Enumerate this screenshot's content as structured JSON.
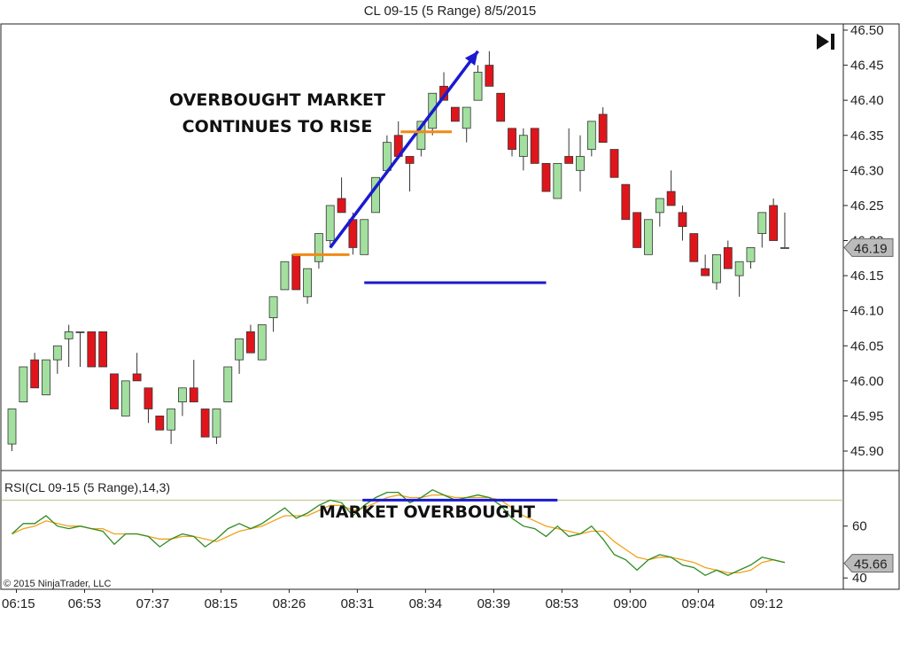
{
  "chart_data": [
    {
      "type": "candlestick",
      "title": "CL 09-15 (5 Range)  8/5/2015",
      "ylim": [
        45.87,
        46.51
      ],
      "yticks": [
        45.9,
        45.95,
        46.0,
        46.05,
        46.1,
        46.15,
        46.2,
        46.25,
        46.3,
        46.35,
        46.4,
        46.45,
        46.5
      ],
      "ytick_labels": [
        "45.90",
        "45.95",
        "46.00",
        "46.05",
        "46.10",
        "46.15",
        "46.20",
        "46.25",
        "46.30",
        "46.35",
        "46.40",
        "46.45",
        "46.50"
      ],
      "last_price_label": "46.19",
      "last_price": 46.19,
      "x_labels": [
        {
          "bar": 0,
          "label": "06:15"
        },
        {
          "bar": 6,
          "label": "06:53"
        },
        {
          "bar": 12,
          "label": "07:37"
        },
        {
          "bar": 18,
          "label": "08:15"
        },
        {
          "bar": 24,
          "label": "08:26"
        },
        {
          "bar": 30,
          "label": "08:31"
        },
        {
          "bar": 36,
          "label": "08:34"
        },
        {
          "bar": 42,
          "label": "08:39"
        },
        {
          "bar": 48,
          "label": "08:53"
        },
        {
          "bar": 54,
          "label": "09:00"
        },
        {
          "bar": 60,
          "label": "09:04"
        },
        {
          "bar": 66,
          "label": "09:12"
        }
      ],
      "candles": [
        {
          "o": 45.91,
          "h": 45.96,
          "l": 45.9,
          "c": 45.96
        },
        {
          "o": 45.97,
          "h": 46.02,
          "l": 45.97,
          "c": 46.02
        },
        {
          "o": 46.03,
          "h": 46.04,
          "l": 45.99,
          "c": 45.99
        },
        {
          "o": 45.98,
          "h": 46.03,
          "l": 45.98,
          "c": 46.03
        },
        {
          "o": 46.03,
          "h": 46.05,
          "l": 46.01,
          "c": 46.05
        },
        {
          "o": 46.06,
          "h": 46.08,
          "l": 46.02,
          "c": 46.07
        },
        {
          "o": 46.07,
          "h": 46.07,
          "l": 46.02,
          "c": 46.07
        },
        {
          "o": 46.07,
          "h": 46.07,
          "l": 46.02,
          "c": 46.02
        },
        {
          "o": 46.07,
          "h": 46.07,
          "l": 46.02,
          "c": 46.02
        },
        {
          "o": 46.01,
          "h": 46.01,
          "l": 45.96,
          "c": 45.96
        },
        {
          "o": 45.95,
          "h": 46.0,
          "l": 45.95,
          "c": 46.0
        },
        {
          "o": 46.01,
          "h": 46.04,
          "l": 46.0,
          "c": 46.0
        },
        {
          "o": 45.99,
          "h": 45.99,
          "l": 45.94,
          "c": 45.96
        },
        {
          "o": 45.95,
          "h": 45.95,
          "l": 45.93,
          "c": 45.93
        },
        {
          "o": 45.93,
          "h": 45.96,
          "l": 45.91,
          "c": 45.96
        },
        {
          "o": 45.97,
          "h": 45.99,
          "l": 45.95,
          "c": 45.99
        },
        {
          "o": 45.99,
          "h": 46.03,
          "l": 45.97,
          "c": 45.97
        },
        {
          "o": 45.96,
          "h": 45.96,
          "l": 45.92,
          "c": 45.92
        },
        {
          "o": 45.92,
          "h": 45.96,
          "l": 45.91,
          "c": 45.96
        },
        {
          "o": 45.97,
          "h": 46.02,
          "l": 45.97,
          "c": 46.02
        },
        {
          "o": 46.03,
          "h": 46.06,
          "l": 46.01,
          "c": 46.06
        },
        {
          "o": 46.07,
          "h": 46.08,
          "l": 46.04,
          "c": 46.04
        },
        {
          "o": 46.03,
          "h": 46.08,
          "l": 46.03,
          "c": 46.08
        },
        {
          "o": 46.09,
          "h": 46.12,
          "l": 46.07,
          "c": 46.12
        },
        {
          "o": 46.13,
          "h": 46.17,
          "l": 46.13,
          "c": 46.17
        },
        {
          "o": 46.18,
          "h": 46.18,
          "l": 46.13,
          "c": 46.13
        },
        {
          "o": 46.12,
          "h": 46.16,
          "l": 46.11,
          "c": 46.16
        },
        {
          "o": 46.17,
          "h": 46.21,
          "l": 46.16,
          "c": 46.21
        },
        {
          "o": 46.2,
          "h": 46.25,
          "l": 46.19,
          "c": 46.25
        },
        {
          "o": 46.26,
          "h": 46.29,
          "l": 46.24,
          "c": 46.24
        },
        {
          "o": 46.23,
          "h": 46.24,
          "l": 46.18,
          "c": 46.19
        },
        {
          "o": 46.18,
          "h": 46.23,
          "l": 46.18,
          "c": 46.23
        },
        {
          "o": 46.24,
          "h": 46.29,
          "l": 46.24,
          "c": 46.29
        },
        {
          "o": 46.3,
          "h": 46.35,
          "l": 46.3,
          "c": 46.34
        },
        {
          "o": 46.35,
          "h": 46.37,
          "l": 46.32,
          "c": 46.32
        },
        {
          "o": 46.32,
          "h": 46.32,
          "l": 46.27,
          "c": 46.31
        },
        {
          "o": 46.33,
          "h": 46.37,
          "l": 46.32,
          "c": 46.37
        },
        {
          "o": 46.36,
          "h": 46.41,
          "l": 46.35,
          "c": 46.41
        },
        {
          "o": 46.42,
          "h": 46.44,
          "l": 46.4,
          "c": 46.4
        },
        {
          "o": 46.39,
          "h": 46.39,
          "l": 46.37,
          "c": 46.37
        },
        {
          "o": 46.36,
          "h": 46.39,
          "l": 46.34,
          "c": 46.39
        },
        {
          "o": 46.4,
          "h": 46.45,
          "l": 46.4,
          "c": 46.44
        },
        {
          "o": 46.45,
          "h": 46.47,
          "l": 46.42,
          "c": 46.42
        },
        {
          "o": 46.41,
          "h": 46.41,
          "l": 46.37,
          "c": 46.37
        },
        {
          "o": 46.36,
          "h": 46.36,
          "l": 46.32,
          "c": 46.33
        },
        {
          "o": 46.32,
          "h": 46.36,
          "l": 46.3,
          "c": 46.35
        },
        {
          "o": 46.36,
          "h": 46.36,
          "l": 46.31,
          "c": 46.31
        },
        {
          "o": 46.31,
          "h": 46.31,
          "l": 46.27,
          "c": 46.27
        },
        {
          "o": 46.26,
          "h": 46.31,
          "l": 46.26,
          "c": 46.31
        },
        {
          "o": 46.32,
          "h": 46.36,
          "l": 46.31,
          "c": 46.31
        },
        {
          "o": 46.3,
          "h": 46.35,
          "l": 46.27,
          "c": 46.32
        },
        {
          "o": 46.33,
          "h": 46.37,
          "l": 46.32,
          "c": 46.37
        },
        {
          "o": 46.38,
          "h": 46.39,
          "l": 46.34,
          "c": 46.34
        },
        {
          "o": 46.33,
          "h": 46.33,
          "l": 46.29,
          "c": 46.29
        },
        {
          "o": 46.28,
          "h": 46.28,
          "l": 46.23,
          "c": 46.23
        },
        {
          "o": 46.24,
          "h": 46.24,
          "l": 46.19,
          "c": 46.19
        },
        {
          "o": 46.18,
          "h": 46.23,
          "l": 46.18,
          "c": 46.23
        },
        {
          "o": 46.24,
          "h": 46.26,
          "l": 46.22,
          "c": 46.26
        },
        {
          "o": 46.27,
          "h": 46.3,
          "l": 46.25,
          "c": 46.25
        },
        {
          "o": 46.24,
          "h": 46.25,
          "l": 46.2,
          "c": 46.22
        },
        {
          "o": 46.21,
          "h": 46.21,
          "l": 46.17,
          "c": 46.17
        },
        {
          "o": 46.16,
          "h": 46.18,
          "l": 46.15,
          "c": 46.15
        },
        {
          "o": 46.14,
          "h": 46.18,
          "l": 46.13,
          "c": 46.18
        },
        {
          "o": 46.19,
          "h": 46.2,
          "l": 46.16,
          "c": 46.16
        },
        {
          "o": 46.15,
          "h": 46.17,
          "l": 46.12,
          "c": 46.17
        },
        {
          "o": 46.17,
          "h": 46.19,
          "l": 46.16,
          "c": 46.19
        },
        {
          "o": 46.21,
          "h": 46.24,
          "l": 46.19,
          "c": 46.24
        },
        {
          "o": 46.25,
          "h": 46.26,
          "l": 46.2,
          "c": 46.2
        },
        {
          "o": 46.19,
          "h": 46.24,
          "l": 46.19,
          "c": 46.19
        }
      ],
      "annotations": {
        "text_lines": [
          "OVERBOUGHT MARKET",
          "CONTINUES TO RISE"
        ],
        "arrow": {
          "from": [
            28,
            46.19
          ],
          "to": [
            41,
            46.47
          ],
          "color": "#1a1acf"
        },
        "blue_line": {
          "price": 46.14,
          "from_bar": 31,
          "to_bar": 47,
          "color": "#1a1acf"
        },
        "orange_lines": [
          {
            "price": 46.18,
            "from_bar": 24.7,
            "to_bar": 29.7,
            "color": "#f08a16"
          },
          {
            "price": 46.355,
            "from_bar": 34.2,
            "to_bar": 38.7,
            "color": "#f08a16"
          }
        ]
      },
      "colors": {
        "up": "#a3e0a0",
        "down": "#e0151b",
        "wick": "#333333"
      }
    },
    {
      "type": "line",
      "title": "RSI(CL 09-15 (5 Range),14,3)",
      "ylim": [
        37,
        78
      ],
      "yticks": [
        40,
        60
      ],
      "ytick_labels": [
        "40",
        "60"
      ],
      "overbought_level": 70,
      "last_value_label": "45.66",
      "last_value": 45.66,
      "annotation_text": "MARKET OVERBOUGHT",
      "annotation_line": {
        "value": 70,
        "from_bar": 31,
        "to_bar": 48,
        "color": "#1a1acf"
      },
      "series": [
        {
          "color": "#2e8b22",
          "values": [
            57,
            61,
            61,
            64,
            60,
            59,
            60,
            59,
            58,
            53,
            57,
            57,
            56,
            52,
            55,
            57,
            56,
            52,
            55,
            59,
            61,
            59,
            61,
            64,
            67,
            63,
            65,
            68,
            70,
            69,
            64,
            68,
            71,
            73,
            73,
            69,
            71,
            74,
            72,
            70,
            71,
            72,
            71,
            68,
            63,
            60,
            59,
            56,
            60,
            56,
            57,
            60,
            55,
            49,
            47,
            43,
            47,
            49,
            48,
            45,
            44,
            41,
            43,
            41,
            43,
            45,
            48,
            47,
            46
          ]
        },
        {
          "color": "#f0a21b",
          "values": [
            57,
            59,
            60,
            62,
            61,
            60,
            60,
            59,
            59,
            57,
            57,
            57,
            56,
            55,
            55,
            56,
            56,
            55,
            54,
            56,
            58,
            59,
            60,
            62,
            64,
            64,
            64,
            66,
            68,
            68,
            66,
            67,
            69,
            71,
            72,
            71,
            71,
            72,
            72,
            71,
            71,
            71,
            71,
            70,
            67,
            64,
            62,
            60,
            59,
            58,
            57,
            58,
            58,
            54,
            51,
            48,
            47,
            48,
            48,
            47,
            46,
            44,
            43,
            42,
            42,
            43,
            46,
            47,
            46
          ]
        }
      ]
    }
  ],
  "copyright": "© 2015 NinjaTrader, LLC"
}
